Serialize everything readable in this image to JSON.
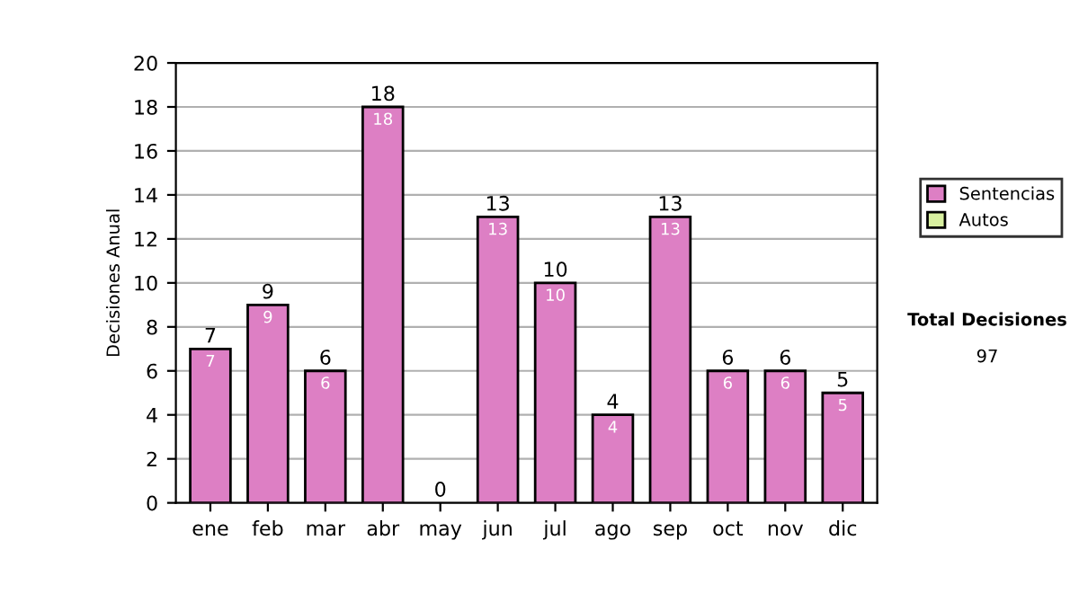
{
  "chart_data": {
    "type": "bar",
    "ylabel": "Decisiones Anual",
    "categories": [
      "ene",
      "feb",
      "mar",
      "abr",
      "may",
      "jun",
      "jul",
      "ago",
      "sep",
      "oct",
      "nov",
      "dic"
    ],
    "stacked": true,
    "series": [
      {
        "name": "Sentencias",
        "color": "#dd7fc4",
        "values": [
          7,
          9,
          6,
          18,
          0,
          13,
          10,
          4,
          13,
          6,
          6,
          5
        ],
        "value_labels": [
          "7",
          "9",
          "6",
          "18",
          null,
          "13",
          "10",
          "4",
          "13",
          "6",
          "6",
          "5"
        ]
      },
      {
        "name": "Autos",
        "color": "#d8f0a0",
        "values": [
          null,
          null,
          null,
          null,
          null,
          null,
          null,
          null,
          null,
          null,
          null,
          null
        ]
      }
    ],
    "totals": [
      "7",
      "9",
      "6",
      "18",
      "0",
      "13",
      "10",
      "4",
      "13",
      "6",
      "6",
      "5"
    ],
    "ylim": [
      0,
      20
    ],
    "yticks": [
      0,
      2,
      4,
      6,
      8,
      10,
      12,
      14,
      16,
      18,
      20
    ],
    "grid": "y",
    "legend": "right",
    "annotations": [
      "Total Decisiones",
      "97"
    ]
  }
}
